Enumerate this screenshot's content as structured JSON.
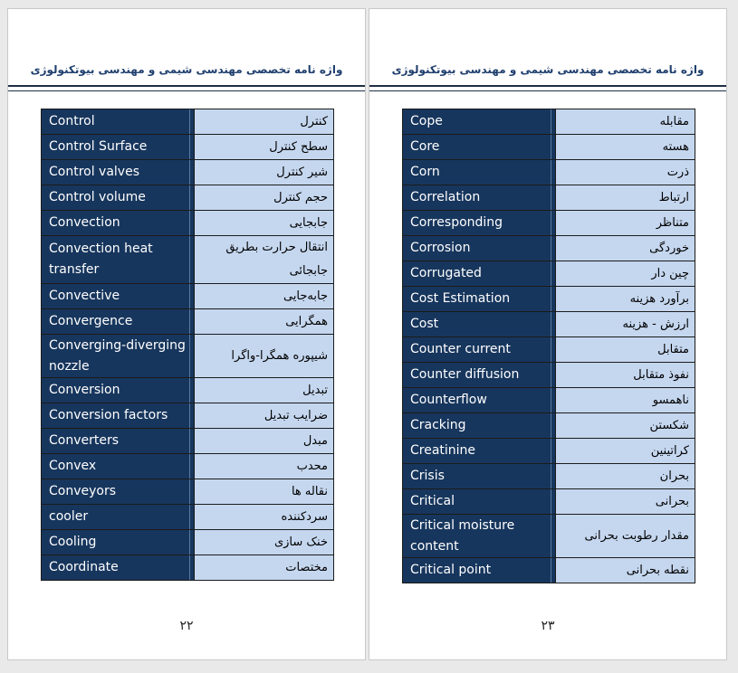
{
  "left_page": {
    "header": "واژه نامه تخصصی مهندسی شیمی و مهندسی بیوتکنولوژی",
    "page_number": "۲۲",
    "rows": [
      {
        "en": "Control",
        "fa": "کنترل"
      },
      {
        "en": "Control Surface",
        "fa": "سطح کنترل"
      },
      {
        "en": "Control valves",
        "fa": "شیر کنترل"
      },
      {
        "en": "Control volume",
        "fa": "حجم کنترل"
      },
      {
        "en": "Convection",
        "fa": "جابجایی"
      },
      {
        "en": "Convection heat transfer",
        "fa": "انتقال حرارت بطریق جابجائی"
      },
      {
        "en": "Convective",
        "fa": "جابه‌جایی"
      },
      {
        "en": "Convergence",
        "fa": "همگرایی"
      },
      {
        "en": "Converging-diverging nozzle",
        "fa": "شیپوره همگرا-واگرا"
      },
      {
        "en": "Conversion",
        "fa": "تبدیل"
      },
      {
        "en": "Conversion factors",
        "fa": "ضرایب تبدیل"
      },
      {
        "en": "Converters",
        "fa": "مبدل"
      },
      {
        "en": "Convex",
        "fa": "محدب"
      },
      {
        "en": "Conveyors",
        "fa": "نقاله ها"
      },
      {
        "en": "cooler",
        "fa": "سردکننده"
      },
      {
        "en": "Cooling",
        "fa": "خنک سازی"
      },
      {
        "en": "Coordinate",
        "fa": "مختصات"
      }
    ]
  },
  "right_page": {
    "header": "واژه نامه تخصصی مهندسی شیمی و مهندسی بیوتکنولوژی",
    "page_number": "۲۳",
    "rows": [
      {
        "en": "Cope",
        "fa": "مقابله"
      },
      {
        "en": "Core",
        "fa": "هسته"
      },
      {
        "en": "Corn",
        "fa": "ذرت"
      },
      {
        "en": "Correlation",
        "fa": "ارتباط"
      },
      {
        "en": "Corresponding",
        "fa": "متناظر"
      },
      {
        "en": "Corrosion",
        "fa": "خوردگی"
      },
      {
        "en": "Corrugated",
        "fa": "چین دار"
      },
      {
        "en": "Cost Estimation",
        "fa": "برآورد هزینه"
      },
      {
        "en": "Cost",
        "fa": "ارزش - هزینه"
      },
      {
        "en": "Counter current",
        "fa": "متقابل"
      },
      {
        "en": "Counter diffusion",
        "fa": "نفوذ متقابل"
      },
      {
        "en": "Counterflow",
        "fa": "ناهمسو"
      },
      {
        "en": "Cracking",
        "fa": "شکستن"
      },
      {
        "en": "Creatinine",
        "fa": "کراتینین"
      },
      {
        "en": "Crisis",
        "fa": "بحران"
      },
      {
        "en": "Critical",
        "fa": "بحرانی"
      },
      {
        "en": "Critical moisture content",
        "fa": "مقدار رطوبت بحرانی"
      },
      {
        "en": "Critical point",
        "fa": "نقطه بحرانی"
      }
    ]
  },
  "colors": {
    "term_cell_bg": "#17365d",
    "translation_cell_bg": "#c5d7ef",
    "header_text": "#1f3f6e"
  }
}
